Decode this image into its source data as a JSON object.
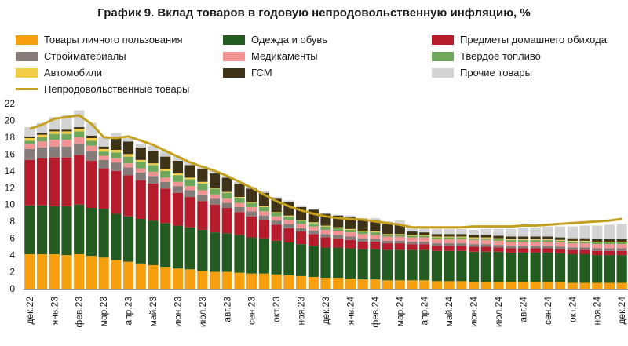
{
  "chart_data": {
    "type": "bar",
    "stacked": true,
    "title": "График 9. Вклад товаров в годовую непродовольственную инфляцию, %",
    "xlabel": "",
    "ylabel": "",
    "ylim": [
      0,
      22
    ],
    "yticks": [
      0,
      2,
      4,
      6,
      8,
      10,
      12,
      14,
      16,
      18,
      20,
      22
    ],
    "legend_position": "top",
    "categories": [
      "дек.22",
      "",
      "янв.23",
      "",
      "фев.23",
      "",
      "мар.23",
      "",
      "апр.23",
      "",
      "май.23",
      "",
      "июн.23",
      "",
      "июл.23",
      "",
      "авг.23",
      "",
      "сен.23",
      "",
      "окт.23",
      "",
      "ноя.23",
      "",
      "дек.23",
      "",
      "янв.24",
      "",
      "фев.24",
      "",
      "мар.24",
      "",
      "апр.24",
      "",
      "май.24",
      "",
      "июн.24",
      "",
      "июл.24",
      "",
      "авг.24",
      "",
      "сен.24",
      "",
      "окт.24",
      "",
      "ноя.24",
      "",
      "дек.24"
    ],
    "tick_labels": [
      "дек.22",
      "янв.23",
      "фев.23",
      "мар.23",
      "апр.23",
      "май.23",
      "июн.23",
      "июл.23",
      "авг.23",
      "сен.23",
      "окт.23",
      "ноя.23",
      "дек.23",
      "янв.24",
      "фев.24",
      "мар.24",
      "апр.24",
      "май.24",
      "июн.24",
      "июл.24",
      "авг.24",
      "сен.24",
      "окт.24",
      "ноя.24",
      "дек.24"
    ],
    "series": [
      {
        "name": "Товары личного пользования",
        "color": "#f7a00f",
        "values": [
          4.1,
          4.1,
          4.1,
          4.0,
          4.1,
          3.9,
          3.7,
          3.4,
          3.2,
          3.0,
          2.8,
          2.6,
          2.4,
          2.3,
          2.1,
          2.0,
          2.0,
          1.9,
          1.8,
          1.8,
          1.7,
          1.6,
          1.5,
          1.4,
          1.3,
          1.3,
          1.2,
          1.1,
          1.1,
          1.0,
          1.0,
          1.0,
          1.0,
          0.9,
          0.9,
          0.9,
          0.8,
          0.8,
          0.8,
          0.8,
          0.8,
          0.8,
          0.8,
          0.8,
          0.7,
          0.7,
          0.7,
          0.7,
          0.7
        ]
      },
      {
        "name": "Одежда и обувь",
        "color": "#235b20",
        "values": [
          5.8,
          5.8,
          5.7,
          5.8,
          5.9,
          5.7,
          5.8,
          5.5,
          5.4,
          5.3,
          5.3,
          5.2,
          5.1,
          5.0,
          4.9,
          4.7,
          4.6,
          4.5,
          4.3,
          4.2,
          4.0,
          3.9,
          3.8,
          3.7,
          3.6,
          3.6,
          3.6,
          3.6,
          3.6,
          3.6,
          3.6,
          3.6,
          3.6,
          3.6,
          3.6,
          3.6,
          3.6,
          3.6,
          3.6,
          3.5,
          3.5,
          3.5,
          3.5,
          3.4,
          3.4,
          3.4,
          3.3,
          3.3,
          3.3
        ]
      },
      {
        "name": "Предметы домашнего обихода",
        "color": "#b71c2c",
        "values": [
          5.4,
          5.6,
          5.8,
          5.8,
          5.9,
          5.6,
          4.8,
          5.1,
          4.9,
          4.6,
          4.4,
          4.1,
          3.9,
          3.6,
          3.4,
          3.3,
          3.0,
          2.7,
          2.5,
          2.2,
          1.9,
          1.7,
          1.5,
          1.4,
          1.2,
          1.1,
          1.0,
          0.9,
          0.9,
          0.8,
          0.8,
          0.7,
          0.7,
          0.6,
          0.6,
          0.6,
          0.6,
          0.6,
          0.5,
          0.5,
          0.5,
          0.5,
          0.5,
          0.5,
          0.5,
          0.5,
          0.5,
          0.5,
          0.5
        ]
      },
      {
        "name": "Стройматериалы",
        "color": "#857b78",
        "values": [
          1.3,
          1.3,
          1.3,
          1.3,
          1.3,
          1.2,
          1.0,
          1.0,
          0.9,
          0.9,
          0.9,
          0.8,
          0.8,
          0.8,
          0.8,
          0.7,
          0.6,
          0.6,
          0.6,
          0.5,
          0.5,
          0.5,
          0.4,
          0.4,
          0.4,
          0.4,
          0.4,
          0.4,
          0.3,
          0.3,
          0.3,
          0.3,
          0.3,
          0.3,
          0.3,
          0.3,
          0.3,
          0.3,
          0.3,
          0.3,
          0.3,
          0.3,
          0.3,
          0.3,
          0.3,
          0.3,
          0.3,
          0.3,
          0.3
        ]
      },
      {
        "name": "Медикаменты",
        "color": "#f09393",
        "values": [
          0.6,
          0.7,
          0.8,
          0.8,
          0.8,
          0.6,
          0.5,
          0.5,
          0.5,
          0.5,
          0.5,
          0.5,
          0.5,
          0.5,
          0.5,
          0.5,
          0.5,
          0.5,
          0.5,
          0.5,
          0.5,
          0.5,
          0.5,
          0.5,
          0.5,
          0.5,
          0.5,
          0.5,
          0.5,
          0.5,
          0.5,
          0.5,
          0.5,
          0.5,
          0.5,
          0.5,
          0.5,
          0.5,
          0.5,
          0.5,
          0.5,
          0.5,
          0.5,
          0.5,
          0.5,
          0.5,
          0.5,
          0.5,
          0.5
        ]
      },
      {
        "name": "Твердое топливо",
        "color": "#6fa85a",
        "values": [
          0.4,
          0.5,
          0.7,
          0.7,
          0.7,
          0.6,
          0.5,
          0.7,
          0.8,
          0.8,
          0.8,
          0.8,
          0.8,
          0.8,
          0.8,
          0.7,
          0.7,
          0.6,
          0.5,
          0.5,
          0.4,
          0.4,
          0.4,
          0.4,
          0.4,
          0.3,
          0.3,
          0.3,
          0.3,
          0.2,
          0.2,
          0.2,
          0.2,
          0.2,
          0.2,
          0.2,
          0.2,
          0.2,
          0.2,
          0.2,
          0.2,
          0.2,
          0.2,
          0.2,
          0.2,
          0.2,
          0.2,
          0.2,
          0.2
        ]
      },
      {
        "name": "Автомобили",
        "color": "#f2cd48",
        "values": [
          0.3,
          0.3,
          0.3,
          0.3,
          0.3,
          0.3,
          0.3,
          0.3,
          0.3,
          0.2,
          0.2,
          0.2,
          0.2,
          0.2,
          0.2,
          0.1,
          0.1,
          0.1,
          0.1,
          0.1,
          0.1,
          0.1,
          0.1,
          0.1,
          0.1,
          0.1,
          0.1,
          0.1,
          0.1,
          0.1,
          0.1,
          0.1,
          0.1,
          0.1,
          0.1,
          0.1,
          0.1,
          0.1,
          0.1,
          0.1,
          0.1,
          0.1,
          0.1,
          0.1,
          0.1,
          0.1,
          0.1,
          0.1,
          0.1
        ]
      },
      {
        "name": "ГСМ",
        "color": "#3f3317",
        "values": [
          0.2,
          0.2,
          0.2,
          0.2,
          0.2,
          0.3,
          0.3,
          1.4,
          1.5,
          1.5,
          1.5,
          1.5,
          1.5,
          1.5,
          1.5,
          1.7,
          1.7,
          1.6,
          1.6,
          1.6,
          1.6,
          1.6,
          1.5,
          1.5,
          1.4,
          1.4,
          1.4,
          1.3,
          1.3,
          1.2,
          1.1,
          0.4,
          0.3,
          0.3,
          0.3,
          0.3,
          0.3,
          0.3,
          0.3,
          0.3,
          0.3,
          0.3,
          0.3,
          0.3,
          0.3,
          0.3,
          0.3,
          0.3,
          0.3
        ]
      },
      {
        "name": "Прочие товары",
        "color": "#d3d3d3",
        "values": [
          1.1,
          1.2,
          1.5,
          1.7,
          2.0,
          1.5,
          1.1,
          0.6,
          0.4,
          0.4,
          0.6,
          0.6,
          0.5,
          0.4,
          0.4,
          0.3,
          0.2,
          0.2,
          0.2,
          0.2,
          0.2,
          0.2,
          0.2,
          0.1,
          0.1,
          0.1,
          0.2,
          0.2,
          0.3,
          0.3,
          0.5,
          0.5,
          0.6,
          0.6,
          0.6,
          0.6,
          0.6,
          0.7,
          0.8,
          0.9,
          1.0,
          1.1,
          1.2,
          1.3,
          1.4,
          1.5,
          1.6,
          1.7,
          1.8
        ]
      }
    ],
    "line": {
      "name": "Непродовольственные товары",
      "color": "#c4a020",
      "values": [
        19.0,
        19.5,
        20.2,
        20.4,
        20.6,
        19.6,
        18.0,
        17.9,
        18.1,
        17.6,
        17.1,
        16.4,
        15.7,
        15.0,
        14.5,
        14.0,
        13.4,
        12.7,
        12.0,
        11.2,
        10.4,
        9.8,
        9.3,
        8.9,
        8.6,
        8.4,
        8.3,
        8.2,
        8.0,
        7.8,
        7.6,
        7.3,
        7.3,
        7.3,
        7.3,
        7.3,
        7.4,
        7.4,
        7.4,
        7.4,
        7.5,
        7.5,
        7.6,
        7.7,
        7.8,
        7.9,
        8.0,
        8.1,
        8.3
      ]
    }
  }
}
